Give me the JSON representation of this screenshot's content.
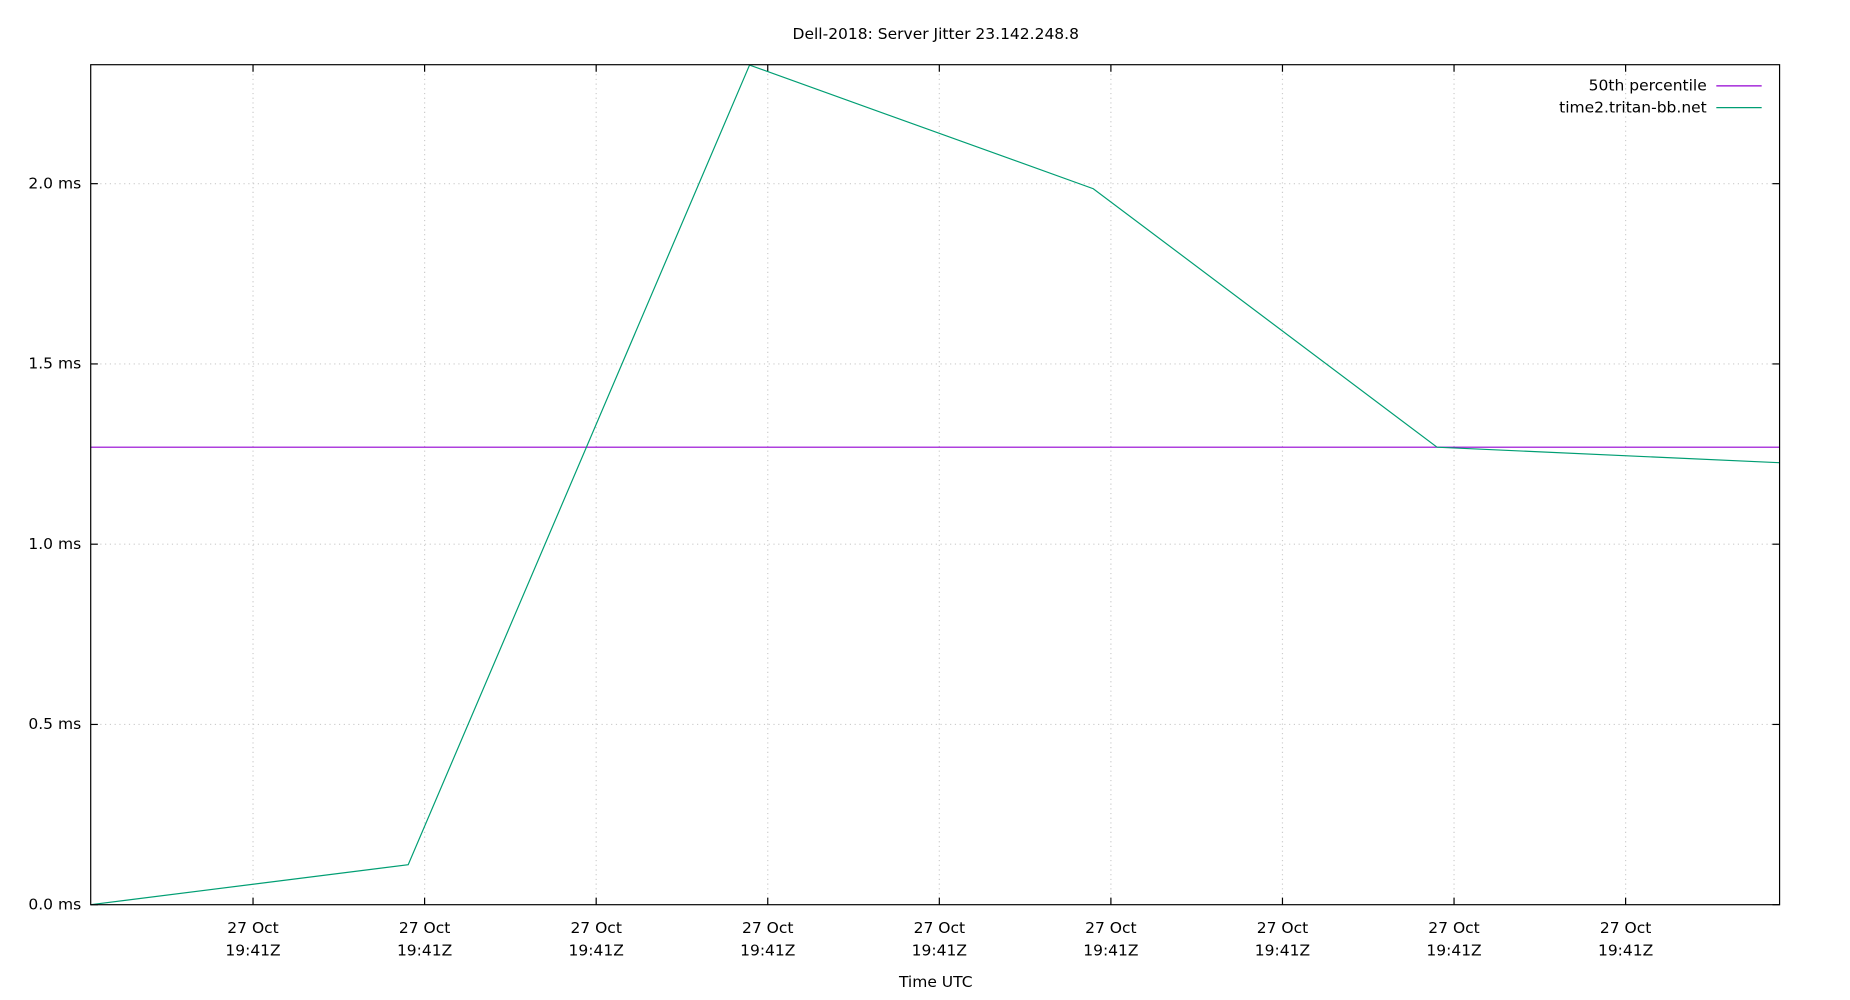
{
  "chart_data": {
    "type": "line",
    "title": "Dell-2018: Server Jitter 23.142.248.8",
    "xlabel": "Time UTC",
    "ylabel": "",
    "ylim": [
      0,
      2.33
    ],
    "grid": true,
    "legend_position": "top-right",
    "y_ticks": [
      "0.0 ms",
      "0.5 ms",
      "1.0 ms",
      "1.5 ms",
      "2.0 ms"
    ],
    "y_tick_values": [
      0,
      0.5,
      1.0,
      1.5,
      2.0
    ],
    "x_ticks": [
      {
        "line1": "27 Oct",
        "line2": "19:41Z"
      },
      {
        "line1": "27 Oct",
        "line2": "19:41Z"
      },
      {
        "line1": "27 Oct",
        "line2": "19:41Z"
      },
      {
        "line1": "27 Oct",
        "line2": "19:41Z"
      },
      {
        "line1": "27 Oct",
        "line2": "19:41Z"
      },
      {
        "line1": "27 Oct",
        "line2": "19:41Z"
      },
      {
        "line1": "27 Oct",
        "line2": "19:41Z"
      },
      {
        "line1": "27 Oct",
        "line2": "19:41Z"
      },
      {
        "line1": "27 Oct",
        "line2": "19:41Z"
      }
    ],
    "series": [
      {
        "name": "50th percentile",
        "color": "#9400d3",
        "values": [
          1.269,
          1.269
        ]
      },
      {
        "name": "time2.tritan-bb.net",
        "color": "#009e73",
        "values": [
          0.0,
          0.111,
          2.329,
          1.986,
          1.269,
          1.226
        ]
      }
    ]
  }
}
